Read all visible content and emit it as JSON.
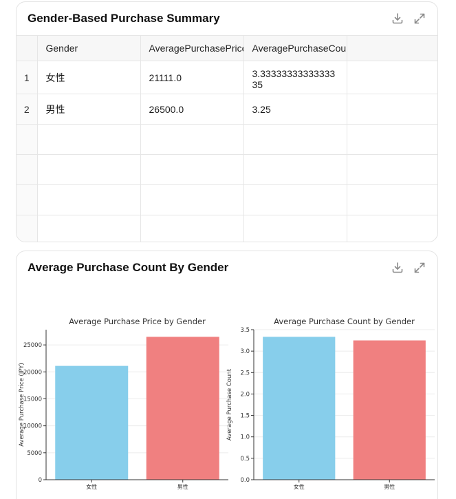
{
  "table_card": {
    "title": "Gender-Based Purchase Summary",
    "columns": [
      "Gender",
      "AveragePurchasePrice",
      "AveragePurchaseCount"
    ],
    "rows": [
      {
        "index": "1",
        "gender": "女性",
        "price": "21111.0",
        "count": "3.3333333333333335"
      },
      {
        "index": "2",
        "gender": "男性",
        "price": "26500.0",
        "count": "3.25"
      }
    ],
    "download_icon": "download-icon",
    "expand_icon": "expand-icon"
  },
  "chart_card": {
    "title": "Average Purchase Count By Gender",
    "download_icon": "download-icon",
    "expand_icon": "expand-icon"
  },
  "chart_data": [
    {
      "type": "bar",
      "title": "Average Purchase Price by Gender",
      "xlabel": "",
      "ylabel": "Average Purchase Price (JPY)",
      "categories": [
        "女性",
        "男性"
      ],
      "values": [
        21111.0,
        26500.0
      ],
      "colors": [
        "#87ceeb",
        "#f08080"
      ],
      "ylim": [
        0,
        27825
      ],
      "yticks": [
        0,
        5000,
        10000,
        15000,
        20000,
        25000
      ],
      "ytick_labels": [
        "0",
        "5000",
        "10000",
        "15000",
        "20000",
        "25000"
      ]
    },
    {
      "type": "bar",
      "title": "Average Purchase Count by Gender",
      "xlabel": "",
      "ylabel": "Average Purchase Count",
      "categories": [
        "女性",
        "男性"
      ],
      "values": [
        3.3333333333333335,
        3.25
      ],
      "colors": [
        "#87ceeb",
        "#f08080"
      ],
      "ylim": [
        0,
        3.5
      ],
      "yticks": [
        0,
        0.5,
        1.0,
        1.5,
        2.0,
        2.5,
        3.0,
        3.5
      ],
      "ytick_labels": [
        "0.0",
        "0.5",
        "1.0",
        "1.5",
        "2.0",
        "2.5",
        "3.0",
        "3.5"
      ]
    }
  ]
}
